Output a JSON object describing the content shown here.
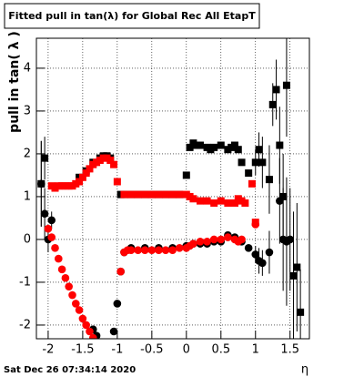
{
  "chart_data": {
    "type": "scatter",
    "title": "Fitted pull in tan(λ) for Global Rec All EtapT",
    "y_label": "pull in tan( λ )",
    "x_label": "η",
    "footer": "Sat Dec 26 07:34:14 2020",
    "grid": true,
    "xlim": [
      -2.17,
      1.78
    ],
    "ylim": [
      -2.32,
      4.7
    ],
    "xticks": [
      -2,
      -1.5,
      -1,
      -0.5,
      0,
      0.5,
      1,
      1.5
    ],
    "yticks": [
      -2,
      -1,
      0,
      1,
      2,
      3,
      4
    ],
    "series": [
      {
        "color": "#000000",
        "marker": "square",
        "x": [
          -2.1,
          -2.05,
          -1.55,
          -1.45,
          -1.35,
          -1.25,
          -1.2,
          -1.15,
          -1.1,
          -0.95,
          -0.9,
          -0.8,
          -0.7,
          -0.6,
          -0.5,
          -0.4,
          -0.3,
          -0.2,
          -0.1,
          0.0,
          0.05,
          0.1,
          0.15,
          0.2,
          0.3,
          0.35,
          0.4,
          0.5,
          0.6,
          0.65,
          0.7,
          0.75,
          0.8,
          0.9,
          1.0,
          1.05,
          1.1,
          1.2,
          1.25,
          1.3,
          1.35,
          1.4,
          1.45,
          1.55,
          1.6,
          1.65
        ],
        "values": [
          1.3,
          1.9,
          1.45,
          1.6,
          1.8,
          1.9,
          1.95,
          1.95,
          1.9,
          1.05,
          1.05,
          1.05,
          1.05,
          1.05,
          1.05,
          1.05,
          1.05,
          1.05,
          1.05,
          1.5,
          2.15,
          2.25,
          2.2,
          2.2,
          2.15,
          2.1,
          2.15,
          2.2,
          2.1,
          2.15,
          2.2,
          2.1,
          1.8,
          1.55,
          1.8,
          2.1,
          1.8,
          1.4,
          3.15,
          3.5,
          2.2,
          1.0,
          3.6,
          -0.85,
          -0.65,
          -1.7
        ],
        "errors": [
          1.0,
          0.5,
          0.05,
          0.05,
          0.05,
          0.05,
          0.05,
          0.05,
          0.05,
          0.05,
          0.05,
          0.05,
          0.05,
          0.05,
          0.05,
          0.05,
          0.05,
          0.05,
          0.05,
          0.05,
          0.05,
          0.05,
          0.05,
          0.05,
          0.05,
          0.05,
          0.05,
          0.05,
          0.05,
          0.05,
          0.05,
          0.05,
          0.05,
          0.05,
          0.3,
          0.4,
          0.6,
          0.8,
          0.5,
          0.7,
          0.9,
          1.0,
          1.2,
          1.5,
          1.5,
          1.0
        ]
      },
      {
        "color": "#000000",
        "marker": "circle",
        "x": [
          -2.1,
          -2.05,
          -2.0,
          -1.95,
          -1.35,
          -1.3,
          -1.05,
          -1.0,
          -0.95,
          -0.9,
          -0.8,
          -0.6,
          -0.4,
          -0.2,
          0.0,
          0.1,
          0.2,
          0.3,
          0.4,
          0.5,
          0.6,
          0.7,
          0.8,
          0.9,
          1.0,
          1.05,
          1.1,
          1.2,
          1.35,
          1.4,
          1.45,
          1.5
        ],
        "values": [
          1.3,
          0.6,
          0.0,
          0.45,
          -2.1,
          -2.25,
          -2.15,
          -1.5,
          -0.75,
          -0.3,
          -0.2,
          -0.2,
          -0.2,
          -0.2,
          -0.15,
          -0.1,
          -0.1,
          -0.1,
          -0.05,
          -0.05,
          0.1,
          0.05,
          -0.05,
          -0.2,
          -0.35,
          -0.5,
          -0.55,
          -0.3,
          0.9,
          0.0,
          -0.05,
          0.0
        ],
        "errors": [
          1.0,
          0.6,
          0.3,
          0.2,
          0.05,
          0.05,
          0.05,
          0.05,
          0.05,
          0.05,
          0.05,
          0.05,
          0.05,
          0.05,
          0.05,
          0.05,
          0.05,
          0.05,
          0.05,
          0.05,
          0.05,
          0.05,
          0.05,
          0.05,
          0.2,
          0.3,
          0.3,
          0.5,
          1.0,
          1.2,
          1.5,
          1.2
        ]
      },
      {
        "color": "#ff0000",
        "marker": "square",
        "x": [
          -1.95,
          -1.9,
          -1.85,
          -1.8,
          -1.75,
          -1.7,
          -1.65,
          -1.6,
          -1.55,
          -1.5,
          -1.45,
          -1.4,
          -1.35,
          -1.3,
          -1.25,
          -1.2,
          -1.15,
          -1.1,
          -1.05,
          -1.0,
          -0.9,
          -0.8,
          -0.7,
          -0.6,
          -0.5,
          -0.4,
          -0.3,
          -0.2,
          -0.1,
          0.0,
          0.05,
          0.1,
          0.2,
          0.3,
          0.4,
          0.5,
          0.6,
          0.7,
          0.75,
          0.8,
          0.85,
          0.95,
          1.0
        ],
        "values": [
          1.25,
          1.2,
          1.25,
          1.25,
          1.25,
          1.25,
          1.25,
          1.3,
          1.35,
          1.45,
          1.55,
          1.65,
          1.75,
          1.8,
          1.85,
          1.9,
          1.9,
          1.85,
          1.75,
          1.35,
          1.05,
          1.05,
          1.05,
          1.05,
          1.05,
          1.05,
          1.05,
          1.05,
          1.05,
          1.05,
          1.0,
          0.95,
          0.9,
          0.9,
          0.85,
          0.9,
          0.85,
          0.85,
          0.95,
          0.9,
          0.85,
          1.3,
          0.4
        ]
      },
      {
        "color": "#ff0000",
        "marker": "circle",
        "x": [
          -2.0,
          -1.95,
          -1.9,
          -1.85,
          -1.8,
          -1.75,
          -1.7,
          -1.65,
          -1.6,
          -1.55,
          -1.5,
          -1.45,
          -1.4,
          -1.35,
          -0.95,
          -0.9,
          -0.85,
          -0.8,
          -0.7,
          -0.6,
          -0.5,
          -0.4,
          -0.3,
          -0.2,
          -0.1,
          0.0,
          0.05,
          0.1,
          0.2,
          0.3,
          0.4,
          0.5,
          0.6,
          0.7,
          0.75,
          0.8,
          1.0
        ],
        "values": [
          0.25,
          0.05,
          -0.2,
          -0.45,
          -0.7,
          -0.9,
          -1.1,
          -1.3,
          -1.5,
          -1.65,
          -1.85,
          -2.0,
          -2.15,
          -2.3,
          -0.75,
          -0.3,
          -0.25,
          -0.25,
          -0.25,
          -0.25,
          -0.25,
          -0.25,
          -0.25,
          -0.25,
          -0.2,
          -0.2,
          -0.15,
          -0.1,
          -0.05,
          -0.05,
          0.0,
          0.0,
          0.05,
          0.0,
          -0.05,
          0.0,
          0.35
        ]
      }
    ]
  }
}
